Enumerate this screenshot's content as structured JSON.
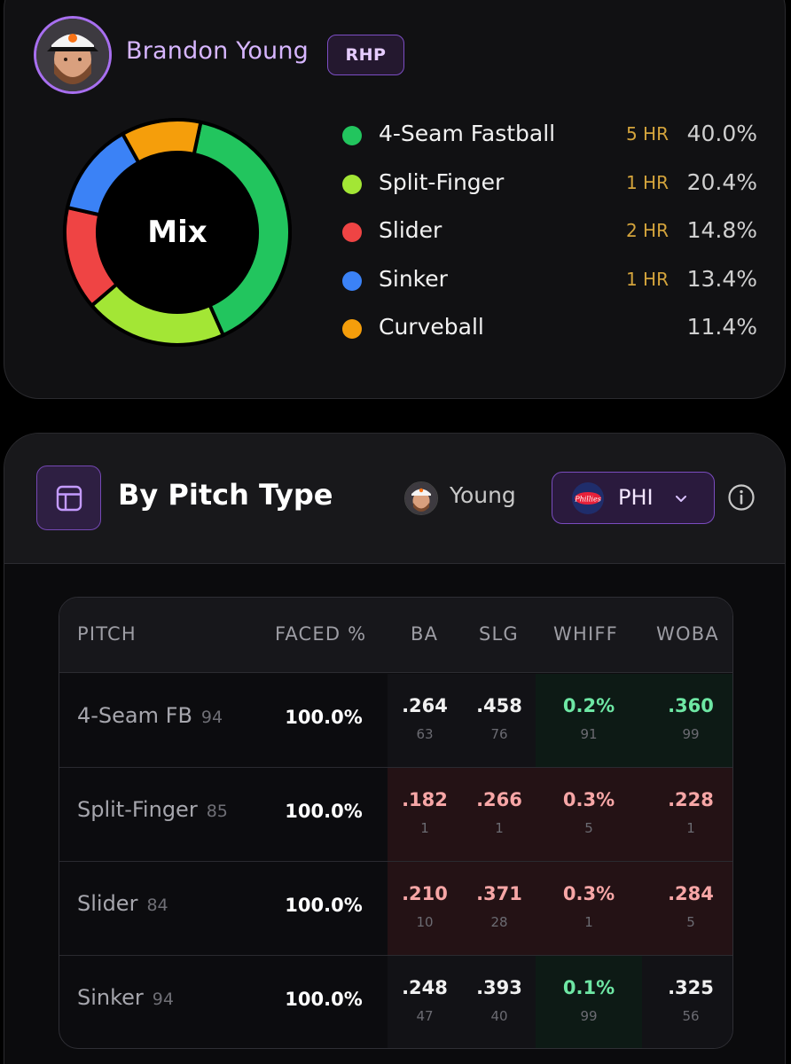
{
  "player": {
    "name": "Brandon Young",
    "hand": "RHP"
  },
  "mix": {
    "center_label": "Mix",
    "pitches": [
      {
        "name": "4-Seam Fastball",
        "hr": "5 HR",
        "pct": "40.0%",
        "value": 40.0,
        "color": "#22c55e"
      },
      {
        "name": "Split-Finger",
        "hr": "1 HR",
        "pct": "20.4%",
        "value": 20.4,
        "color": "#a3e635"
      },
      {
        "name": "Slider",
        "hr": "2 HR",
        "pct": "14.8%",
        "value": 14.8,
        "color": "#ef4444"
      },
      {
        "name": "Sinker",
        "hr": "1 HR",
        "pct": "13.4%",
        "value": 13.4,
        "color": "#3b82f6"
      },
      {
        "name": "Curveball",
        "hr": "",
        "pct": "11.4%",
        "value": 11.4,
        "color": "#f59e0b"
      }
    ]
  },
  "section": {
    "title": "By Pitch Type",
    "player_short": "Young",
    "team": "PHI"
  },
  "table": {
    "headers": [
      "PITCH",
      "FACED %",
      "BA",
      "SLG",
      "WHIFF",
      "WOBA"
    ],
    "rows": [
      {
        "pitch": "4-Seam FB",
        "velo": "94",
        "faced": "100.0%",
        "ba": {
          "value": ".264",
          "pct": "63",
          "tone": "neutral"
        },
        "slg": {
          "value": ".458",
          "pct": "76",
          "tone": "neutral"
        },
        "whiff": {
          "value": "0.2%",
          "pct": "91",
          "tone": "good"
        },
        "woba": {
          "value": ".360",
          "pct": "99",
          "tone": "good"
        }
      },
      {
        "pitch": "Split-Finger",
        "velo": "85",
        "faced": "100.0%",
        "ba": {
          "value": ".182",
          "pct": "1",
          "tone": "bad"
        },
        "slg": {
          "value": ".266",
          "pct": "1",
          "tone": "bad"
        },
        "whiff": {
          "value": "0.3%",
          "pct": "5",
          "tone": "bad"
        },
        "woba": {
          "value": ".228",
          "pct": "1",
          "tone": "bad"
        }
      },
      {
        "pitch": "Slider",
        "velo": "84",
        "faced": "100.0%",
        "ba": {
          "value": ".210",
          "pct": "10",
          "tone": "bad"
        },
        "slg": {
          "value": ".371",
          "pct": "28",
          "tone": "bad"
        },
        "whiff": {
          "value": "0.3%",
          "pct": "1",
          "tone": "bad"
        },
        "woba": {
          "value": ".284",
          "pct": "5",
          "tone": "bad"
        }
      },
      {
        "pitch": "Sinker",
        "velo": "94",
        "faced": "100.0%",
        "ba": {
          "value": ".248",
          "pct": "47",
          "tone": "neutral"
        },
        "slg": {
          "value": ".393",
          "pct": "40",
          "tone": "neutral"
        },
        "whiff": {
          "value": "0.1%",
          "pct": "99",
          "tone": "good"
        },
        "woba": {
          "value": ".325",
          "pct": "56",
          "tone": "neutral"
        }
      }
    ]
  }
}
